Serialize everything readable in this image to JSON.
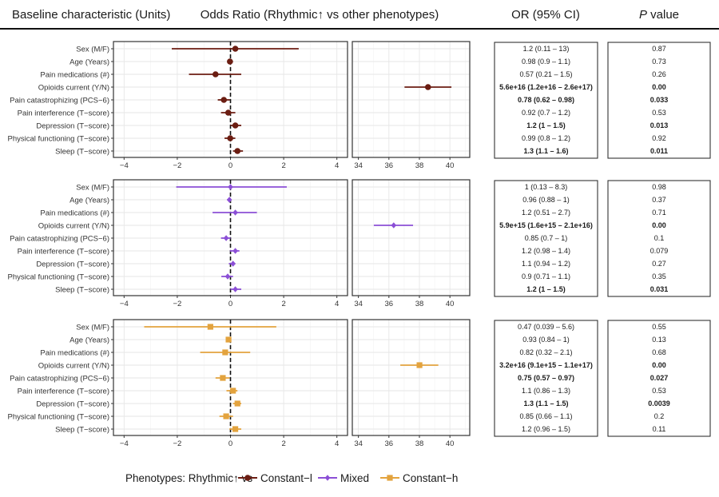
{
  "header": {
    "characteristic": "Baseline characteristic (Units)",
    "odds_ratio": "Odds Ratio (Rhythmic↑ vs other phenotypes)",
    "or_ci": "OR (95% CI)",
    "p_italic": "P",
    "p_rest": " value"
  },
  "legend": {
    "prefix": "Phenotypes:  Rhythmic↑ vs",
    "items": [
      {
        "label": "Constant−l",
        "marker": "circle",
        "color": "#6b1d12"
      },
      {
        "label": "Mixed",
        "marker": "diamond",
        "color": "#8b4fd6"
      },
      {
        "label": "Constant−h",
        "marker": "square",
        "color": "#e3a33e"
      }
    ]
  },
  "chart_data": {
    "type": "forest",
    "x_scale": "log odds ratio (ln OR)",
    "left_axis": {
      "xlim": [
        -4.4,
        4.4
      ],
      "ticks": [
        "−4",
        "−2",
        "0",
        "2",
        "4"
      ],
      "tick_values": [
        -4,
        -2,
        0,
        2,
        4
      ],
      "reference_line": 0
    },
    "right_axis": {
      "xlim": [
        33.6,
        41.3
      ],
      "ticks": [
        "34",
        "36",
        "38",
        "40"
      ],
      "tick_values": [
        34,
        36,
        38,
        40
      ]
    },
    "grid": true,
    "legend_position": "bottom",
    "characteristics": [
      "Sex (M/F)",
      "Age (Years)",
      "Pain medications (#)",
      "Opioids current (Y/N)",
      "Pain catastrophizing (PCS−6)",
      "Pain interference (T−score)",
      "Depression (T−score)",
      "Physical functioning (T−score)",
      "Sleep (T−score)"
    ],
    "series": [
      {
        "name": "Constant−l",
        "or": [
          1.2,
          0.98,
          0.57,
          5.6e+16,
          0.78,
          0.92,
          1.2,
          0.99,
          1.3
        ],
        "ci_low": [
          0.11,
          0.9,
          0.21,
          1.2e+16,
          0.62,
          0.7,
          1,
          0.8,
          1.1
        ],
        "ci_high": [
          13,
          1.1,
          1.5,
          2.6e+17,
          0.98,
          1.2,
          1.5,
          1.2,
          1.6
        ],
        "or_ci_text": [
          "1.2 (0.11 – 13)",
          "0.98 (0.9 – 1.1)",
          "0.57 (0.21 – 1.5)",
          "5.6e+16 (1.2e+16 – 2.6e+17)",
          "0.78 (0.62 – 0.98)",
          "0.92 (0.7 – 1.2)",
          "1.2 (1 – 1.5)",
          "0.99 (0.8 – 1.2)",
          "1.3 (1.1 – 1.6)"
        ],
        "p_text": [
          "0.87",
          "0.73",
          "0.26",
          "0.00",
          "0.033",
          "0.53",
          "0.013",
          "0.92",
          "0.011"
        ],
        "significant": [
          false,
          false,
          false,
          true,
          true,
          false,
          true,
          false,
          true
        ]
      },
      {
        "name": "Mixed",
        "or": [
          1,
          0.96,
          1.2,
          5900000000000000.0,
          0.85,
          1.2,
          1.1,
          0.9,
          1.2
        ],
        "ci_low": [
          0.13,
          0.88,
          0.51,
          1600000000000000.0,
          0.7,
          0.98,
          0.94,
          0.71,
          1
        ],
        "ci_high": [
          8.3,
          1,
          2.7,
          2.1e+16,
          1,
          1.4,
          1.2,
          1.1,
          1.5
        ],
        "or_ci_text": [
          "1 (0.13 – 8.3)",
          "0.96 (0.88 – 1)",
          "1.2 (0.51 – 2.7)",
          "5.9e+15 (1.6e+15 – 2.1e+16)",
          "0.85 (0.7 – 1)",
          "1.2 (0.98 – 1.4)",
          "1.1 (0.94 – 1.2)",
          "0.9 (0.71 – 1.1)",
          "1.2 (1 – 1.5)"
        ],
        "p_text": [
          "0.98",
          "0.37",
          "0.71",
          "0.00",
          "0.1",
          "0.079",
          "0.27",
          "0.35",
          "0.031"
        ],
        "significant": [
          false,
          false,
          false,
          true,
          false,
          false,
          false,
          false,
          true
        ]
      },
      {
        "name": "Constant−h",
        "or": [
          0.47,
          0.93,
          0.82,
          3.2e+16,
          0.75,
          1.1,
          1.3,
          0.85,
          1.2
        ],
        "ci_low": [
          0.039,
          0.84,
          0.32,
          9100000000000000.0,
          0.57,
          0.86,
          1.1,
          0.66,
          0.96
        ],
        "ci_high": [
          5.6,
          1,
          2.1,
          1.1e+17,
          0.97,
          1.3,
          1.5,
          1.1,
          1.5
        ],
        "or_ci_text": [
          "0.47 (0.039 – 5.6)",
          "0.93 (0.84 – 1)",
          "0.82 (0.32 – 2.1)",
          "3.2e+16 (9.1e+15 – 1.1e+17)",
          "0.75 (0.57 – 0.97)",
          "1.1 (0.86 – 1.3)",
          "1.3 (1.1 – 1.5)",
          "0.85 (0.66 – 1.1)",
          "1.2 (0.96 – 1.5)"
        ],
        "p_text": [
          "0.55",
          "0.13",
          "0.68",
          "0.00",
          "0.027",
          "0.53",
          "0.0039",
          "0.2",
          "0.11"
        ],
        "significant": [
          false,
          false,
          false,
          true,
          true,
          false,
          true,
          false,
          false
        ]
      }
    ]
  }
}
